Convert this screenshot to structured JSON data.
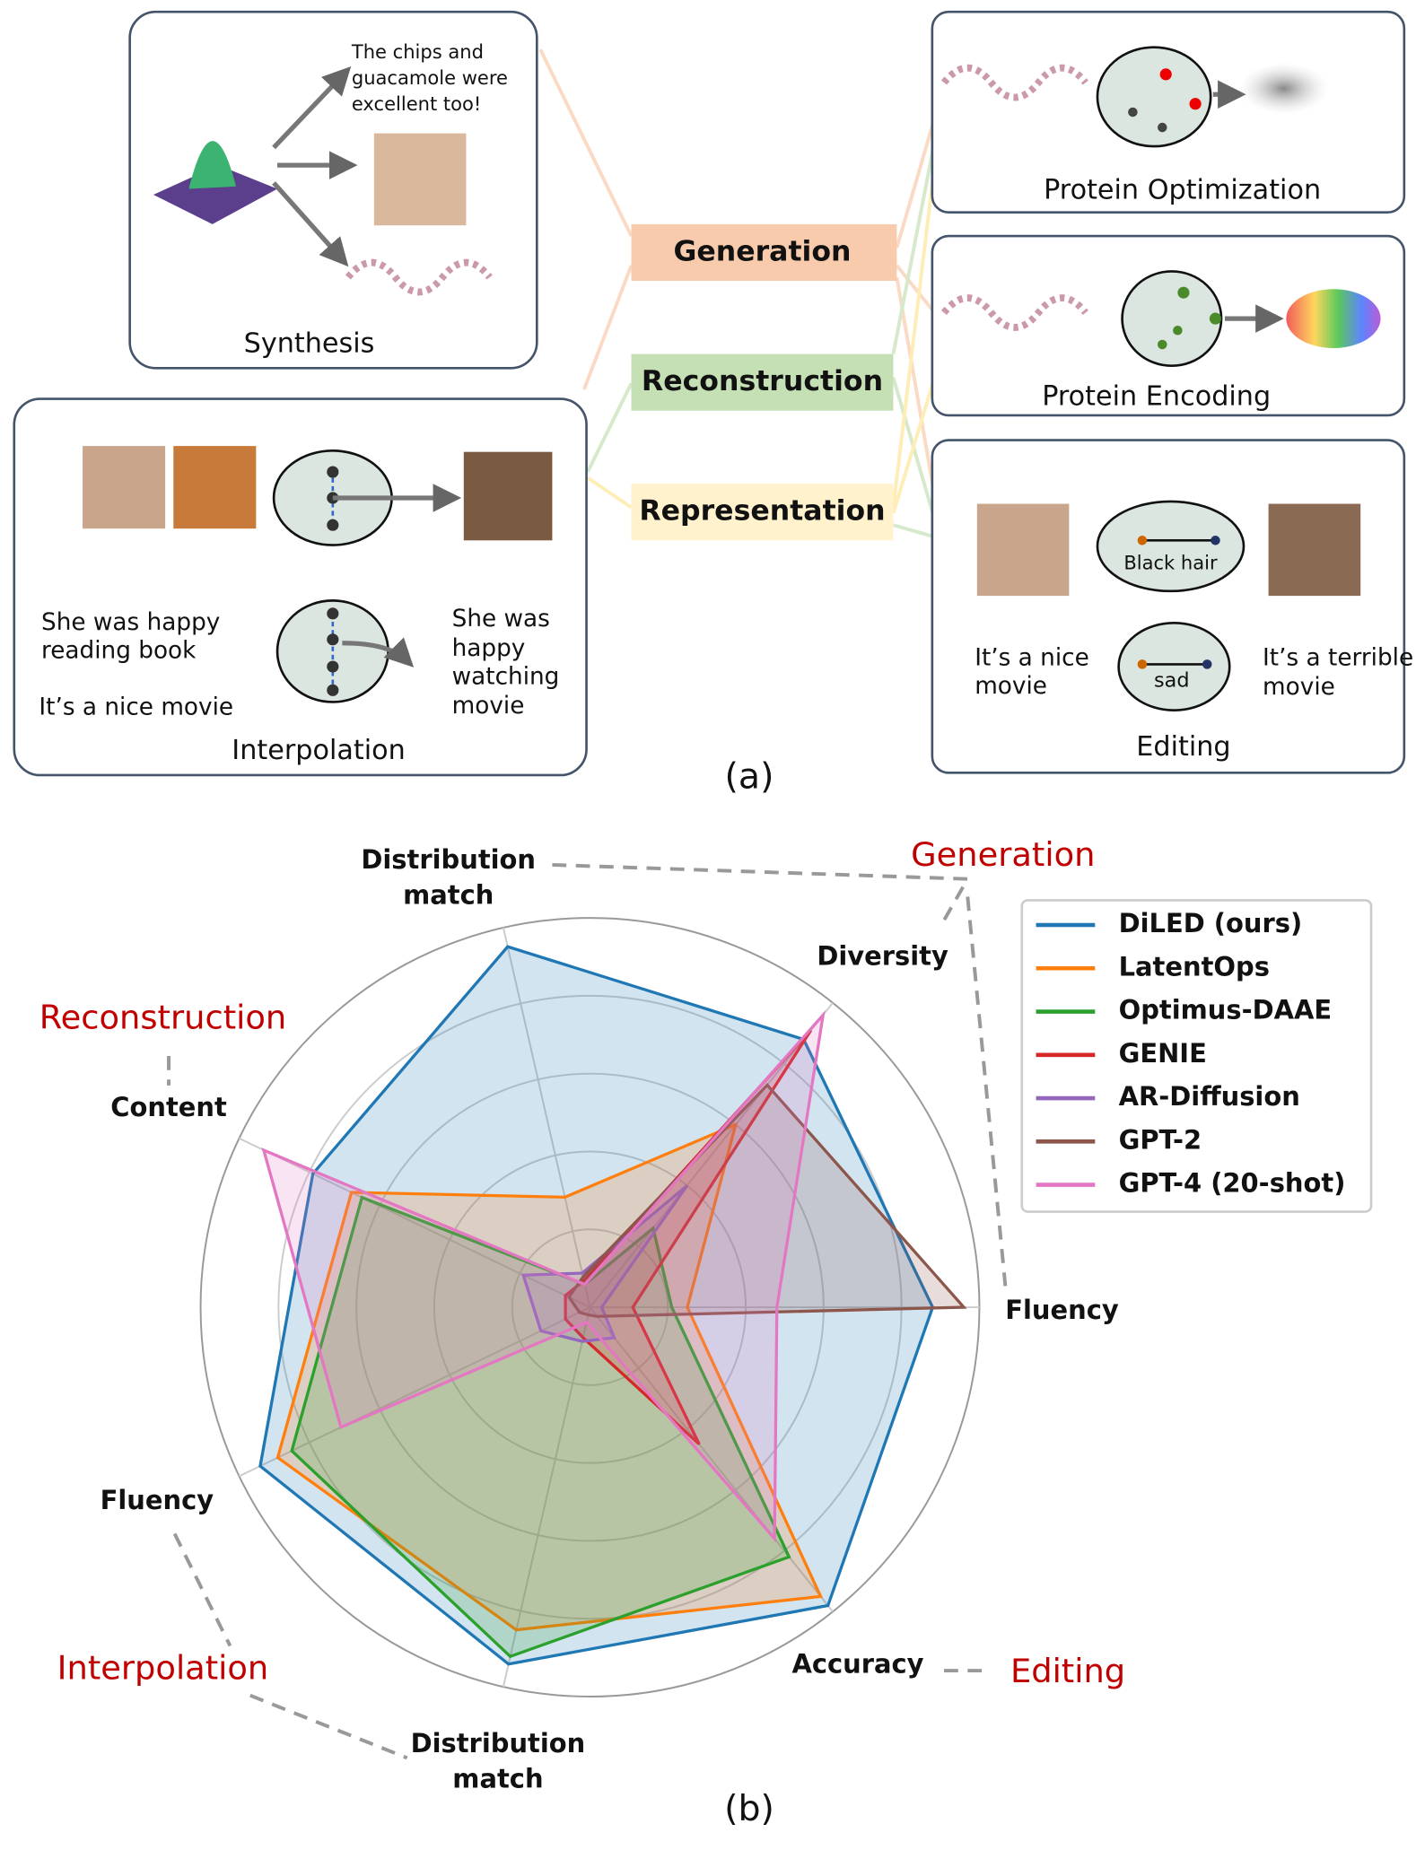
{
  "diagram": {
    "label": "(a)",
    "center": [
      "Generation",
      "Reconstruction",
      "Representation"
    ],
    "synthesis": {
      "title": "Synthesis",
      "text": [
        "The chips and",
        "guacamole were",
        "excellent too!"
      ]
    },
    "interpolation": {
      "title": "Interpolation",
      "text": [
        "She was happy",
        "reading book",
        "It’s a nice movie",
        "She was",
        "happy",
        "watching",
        "movie"
      ]
    },
    "protein_optimization": {
      "title": "Protein Optimization"
    },
    "protein_encoding": {
      "title": "Protein Encoding"
    },
    "editing": {
      "title": "Editing",
      "text": [
        "Black hair",
        "sad",
        "It’s a nice",
        "movie",
        "It’s a terrible",
        "movie"
      ]
    }
  },
  "chart_data": {
    "type": "radar",
    "label": "(b)",
    "axes": [
      "Fluency",
      "Diversity",
      "Distribution match",
      "Content",
      "Fluency",
      "Distribution match",
      "Accuracy"
    ],
    "groups": [
      "Generation",
      "Reconstruction",
      "Interpolation",
      "Editing"
    ],
    "rlim": [
      0,
      1
    ],
    "rticks": [
      0.2,
      0.4,
      0.6,
      0.8,
      1.0
    ],
    "series": [
      {
        "name": "DiLED (ours)",
        "color": "#1f77b4",
        "values": [
          0.88,
          0.88,
          0.95,
          0.79,
          0.94,
          0.94,
          0.98
        ]
      },
      {
        "name": "LatentOps",
        "color": "#ff7f0e",
        "values": [
          0.25,
          0.6,
          0.29,
          0.68,
          0.89,
          0.85,
          0.95
        ]
      },
      {
        "name": "Optimus-DAAE",
        "color": "#2ca02c",
        "values": [
          0.21,
          0.26,
          0.06,
          0.65,
          0.85,
          0.92,
          0.82
        ]
      },
      {
        "name": "GENIE",
        "color": "#d62728",
        "values": [
          0.11,
          0.91,
          0.07,
          0.07,
          0.07,
          0.08,
          0.45
        ]
      },
      {
        "name": "AR-Diffusion",
        "color": "#9467bd",
        "values": [
          0.03,
          0.4,
          0.09,
          0.19,
          0.14,
          0.09,
          0.1
        ]
      },
      {
        "name": "GPT-2",
        "color": "#8c564b",
        "values": [
          0.96,
          0.73,
          0.08,
          0.06,
          0.03,
          0.02,
          0.03
        ]
      },
      {
        "name": "GPT-4 (20-shot)",
        "color": "#e377c2",
        "values": [
          0.48,
          0.96,
          0.06,
          0.93,
          0.71,
          0.04,
          0.76
        ]
      }
    ]
  }
}
